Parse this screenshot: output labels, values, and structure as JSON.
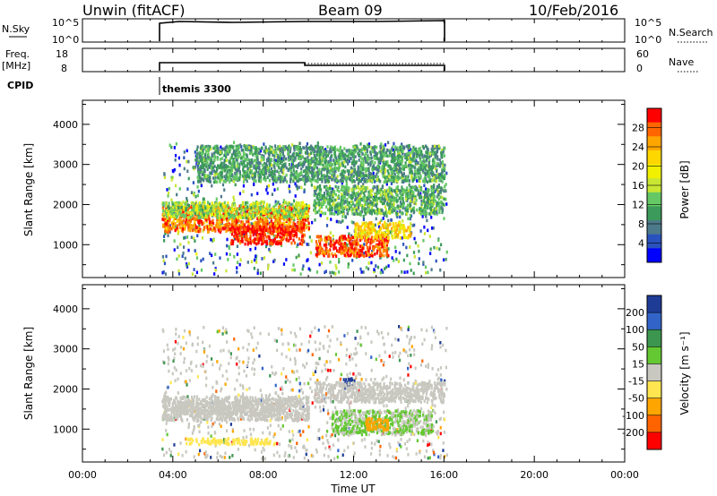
{
  "header": {
    "station": "Unwin (fitACF)",
    "beam": "Beam 09",
    "date": "10/Feb/2016"
  },
  "panels": {
    "nsky_label": "N.Sky",
    "nsky_ticks": [
      "10^5",
      "10^0"
    ],
    "nsearch_label": "N.Search",
    "freq_label": "Freq.",
    "freq_unit": "[MHz]",
    "freq_ticks": [
      "18",
      "8"
    ],
    "nave_ticks": [
      "60",
      "0"
    ],
    "nave_label": "Nave",
    "cpid_label": "CPID",
    "cpid_text": "themis 3300"
  },
  "colorbars": {
    "power": {
      "title": "Power [dB]",
      "ticks": [
        "28",
        "24",
        "20",
        "16",
        "12",
        "8",
        "4"
      ],
      "colors": [
        "#ff0000",
        "#ff6600",
        "#ffa500",
        "#ffd700",
        "#f0f000",
        "#c8e632",
        "#64c864",
        "#3c9a5a",
        "#4d7a8a",
        "#2a52be",
        "#0000ff"
      ]
    },
    "velocity": {
      "title": "Velocity [m s⁻¹]",
      "ticks": [
        "200",
        "100",
        "50",
        "15",
        "-15",
        "-50",
        "-100",
        "-200"
      ],
      "colors": [
        "#1e3c96",
        "#3264c8",
        "#3c9650",
        "#64c832",
        "#c8c8c0",
        "#ffe650",
        "#ffa500",
        "#ff6400",
        "#ff0000"
      ]
    }
  },
  "chart_data": {
    "type": "heatmap",
    "xlabel": "Time UT",
    "x_ticks": [
      "00:00",
      "04:00",
      "08:00",
      "12:00",
      "16:00",
      "20:00",
      "00:00"
    ],
    "xlim": [
      0,
      24
    ],
    "ylabel": "Slant Range [km]",
    "y_ticks": [
      1000,
      2000,
      3000,
      4000
    ],
    "ylim": [
      180,
      4600
    ],
    "data_start_hour": 3.5,
    "data_end_hour": 16.1,
    "cpid_change_hour": 10.0,
    "series": [
      {
        "name": "Power",
        "units": "dB",
        "range": [
          0,
          30
        ],
        "features": [
          {
            "t0": 3.5,
            "t1": 10.0,
            "r0": 1350,
            "r1": 2000,
            "value": 25
          },
          {
            "t0": 3.5,
            "t1": 10.0,
            "r0": 1700,
            "r1": 2100,
            "value": 14
          },
          {
            "t0": 6.5,
            "t1": 9.8,
            "r0": 1050,
            "r1": 1500,
            "value": 28
          },
          {
            "t0": 10.3,
            "t1": 13.5,
            "r0": 750,
            "r1": 1250,
            "value": 27
          },
          {
            "t0": 12.0,
            "t1": 14.5,
            "r0": 1200,
            "r1": 1600,
            "value": 20
          },
          {
            "t0": 10.2,
            "t1": 16.0,
            "r0": 1800,
            "r1": 2500,
            "value": 11
          },
          {
            "t0": 5.0,
            "t1": 16.0,
            "r0": 2600,
            "r1": 3500,
            "value": 10
          }
        ]
      },
      {
        "name": "Velocity",
        "units": "m s-1",
        "range": [
          -250,
          250
        ],
        "features": [
          {
            "t0": 3.5,
            "t1": 10.0,
            "r0": 1250,
            "r1": 1850,
            "value": 0
          },
          {
            "t0": 4.0,
            "t1": 9.0,
            "r0": 1400,
            "r1": 1700,
            "value": -5
          },
          {
            "t0": 4.5,
            "t1": 8.5,
            "r0": 650,
            "r1": 800,
            "value": -60
          },
          {
            "t0": 11.0,
            "t1": 15.5,
            "r0": 900,
            "r1": 1500,
            "value": 30
          },
          {
            "t0": 12.5,
            "t1": 13.5,
            "r0": 1000,
            "r1": 1300,
            "value": -100
          },
          {
            "t0": 11.5,
            "t1": 12.0,
            "r0": 2050,
            "r1": 2300,
            "value": 220
          },
          {
            "t0": 10.2,
            "t1": 16.0,
            "r0": 1700,
            "r1": 2200,
            "value": 0
          }
        ]
      }
    ]
  }
}
